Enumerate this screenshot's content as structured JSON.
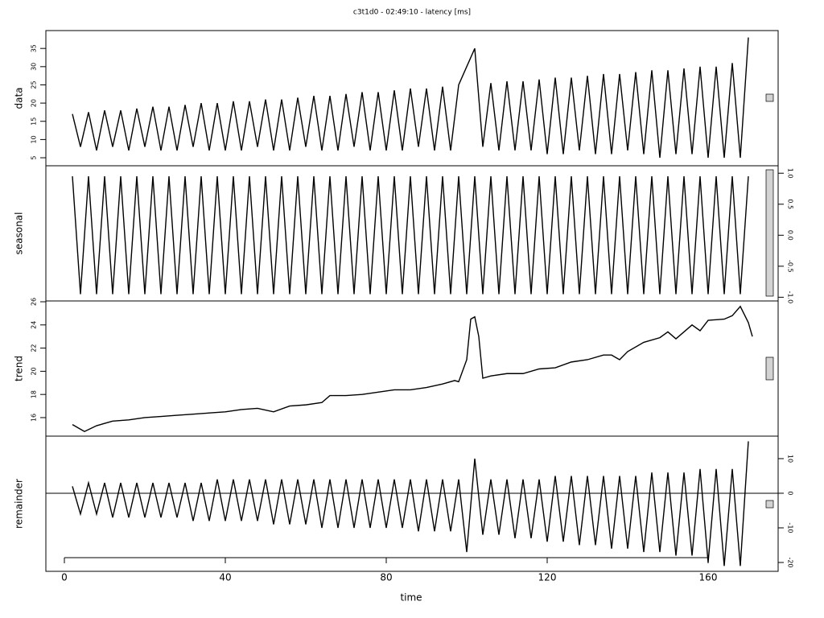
{
  "chart_data": [
    {
      "type": "line",
      "title": "c3t1d0 - 02:49:10 - latency [ms]",
      "ylabel": "data",
      "ylim": [
        2.8,
        39.9
      ],
      "yticks": [
        5,
        10,
        15,
        20,
        25,
        30,
        35
      ],
      "x": [
        2,
        4,
        6,
        8,
        10,
        12,
        14,
        16,
        18,
        20,
        22,
        24,
        26,
        28,
        30,
        32,
        34,
        36,
        38,
        40,
        42,
        44,
        46,
        48,
        50,
        52,
        54,
        56,
        58,
        60,
        62,
        64,
        66,
        68,
        70,
        72,
        74,
        76,
        78,
        80,
        82,
        84,
        86,
        88,
        90,
        92,
        94,
        96,
        98,
        100,
        102,
        104,
        106,
        108,
        110,
        112,
        114,
        116,
        118,
        120,
        122,
        124,
        126,
        128,
        130,
        132,
        134,
        136,
        138,
        140,
        142,
        144,
        146,
        148,
        150,
        152,
        154,
        156,
        158,
        160,
        162,
        164,
        166,
        168,
        170
      ],
      "values": [
        17,
        8,
        17.5,
        7,
        18,
        8,
        18,
        7,
        18.5,
        8,
        19,
        7,
        19,
        7,
        19.5,
        8,
        20,
        7,
        20,
        7,
        20.5,
        7,
        20.5,
        8,
        21,
        7,
        21,
        7,
        21.5,
        8,
        22,
        7,
        22,
        7,
        22.5,
        8,
        23,
        7,
        23,
        7,
        23.5,
        7,
        24,
        8,
        24,
        7,
        24.5,
        7,
        25,
        30,
        35,
        8,
        25.5,
        7,
        26,
        7,
        26,
        7,
        26.5,
        6,
        27,
        6,
        27,
        7,
        27.5,
        6,
        28,
        6,
        28,
        7,
        28.5,
        6,
        29,
        5,
        29,
        6,
        29.5,
        6,
        30,
        5,
        30,
        5,
        31,
        5,
        38
      ],
      "color": "#000000"
    },
    {
      "type": "line",
      "ylabel": "seasonal",
      "ylim": [
        -1.06,
        1.12
      ],
      "yticks": [
        {
          "value": -1,
          "label": "-1.0"
        },
        -0.5,
        {
          "value": 0,
          "label": "0.0"
        },
        0.5,
        {
          "value": 1,
          "label": "1.0"
        }
      ],
      "x": [
        2,
        4,
        6,
        8,
        10,
        12,
        14,
        16,
        18,
        20,
        22,
        24,
        26,
        28,
        30,
        32,
        34,
        36,
        38,
        40,
        42,
        44,
        46,
        48,
        50,
        52,
        54,
        56,
        58,
        60,
        62,
        64,
        66,
        68,
        70,
        72,
        74,
        76,
        78,
        80,
        82,
        84,
        86,
        88,
        90,
        92,
        94,
        96,
        98,
        100,
        102,
        104,
        106,
        108,
        110,
        112,
        114,
        116,
        118,
        120,
        122,
        124,
        126,
        128,
        130,
        132,
        134,
        136,
        138,
        140,
        142,
        144,
        146,
        148,
        150,
        152,
        154,
        156,
        158,
        160,
        162,
        164,
        166,
        168,
        170
      ],
      "values": [
        0.95,
        -0.95,
        0.95,
        -0.95,
        0.95,
        -0.95,
        0.95,
        -0.95,
        0.95,
        -0.95,
        0.95,
        -0.95,
        0.95,
        -0.95,
        0.95,
        -0.95,
        0.95,
        -0.95,
        0.95,
        -0.95,
        0.95,
        -0.95,
        0.95,
        -0.95,
        0.95,
        -0.95,
        0.95,
        -0.95,
        0.95,
        -0.95,
        0.95,
        -0.95,
        0.95,
        -0.95,
        0.95,
        -0.95,
        0.95,
        -0.95,
        0.95,
        -0.95,
        0.95,
        -0.95,
        0.95,
        -0.95,
        0.95,
        -0.95,
        0.95,
        -0.95,
        0.95,
        -0.95,
        0.95,
        -0.95,
        0.95,
        -0.95,
        0.95,
        -0.95,
        0.95,
        -0.95,
        0.95,
        -0.95,
        0.95,
        -0.95,
        0.95,
        -0.95,
        0.95,
        -0.95,
        0.95,
        -0.95,
        0.95,
        -0.95,
        0.95,
        -0.95,
        0.95,
        -0.95,
        0.95,
        -0.95,
        0.95,
        -0.95,
        0.95,
        -0.95,
        0.95,
        -0.95,
        0.95,
        -0.95,
        0.95
      ],
      "color": "#000000"
    },
    {
      "type": "line",
      "ylabel": "trend",
      "ylim": [
        14.4,
        26.07
      ],
      "yticks": [
        16,
        18,
        20,
        22,
        24,
        26
      ],
      "x": [
        2,
        4,
        5,
        8,
        12,
        16,
        20,
        24,
        28,
        32,
        36,
        40,
        44,
        48,
        52,
        56,
        60,
        64,
        66,
        70,
        74,
        78,
        82,
        86,
        90,
        94,
        97,
        98,
        100,
        101,
        102,
        103,
        104,
        106,
        110,
        114,
        118,
        122,
        126,
        130,
        134,
        136,
        138,
        140,
        144,
        148,
        150,
        152,
        156,
        158,
        160,
        164,
        166,
        168,
        170,
        171
      ],
      "values": [
        15.4,
        15.0,
        14.8,
        15.3,
        15.7,
        15.8,
        16.0,
        16.1,
        16.2,
        16.3,
        16.4,
        16.5,
        16.7,
        16.8,
        16.5,
        17.0,
        17.1,
        17.3,
        17.9,
        17.9,
        18.0,
        18.2,
        18.4,
        18.4,
        18.6,
        18.9,
        19.2,
        19.1,
        21.0,
        24.5,
        24.7,
        23.0,
        19.4,
        19.6,
        19.8,
        19.8,
        20.2,
        20.3,
        20.8,
        21.0,
        21.4,
        21.4,
        21.0,
        21.7,
        22.5,
        22.9,
        23.4,
        22.8,
        24.0,
        23.5,
        24.4,
        24.5,
        24.8,
        25.6,
        24.2,
        23.0
      ],
      "color": "#000000"
    },
    {
      "type": "line",
      "ylabel": "remainder",
      "xlabel": "time",
      "ylim": [
        -22.56,
        16.5
      ],
      "yticks": [
        -20,
        -10,
        0,
        10
      ],
      "hline": 0,
      "xlim": [
        -4.6,
        177.4
      ],
      "xticks": [
        0,
        40,
        80,
        120,
        160
      ],
      "x": [
        2,
        4,
        6,
        8,
        10,
        12,
        14,
        16,
        18,
        20,
        22,
        24,
        26,
        28,
        30,
        32,
        34,
        36,
        38,
        40,
        42,
        44,
        46,
        48,
        50,
        52,
        54,
        56,
        58,
        60,
        62,
        64,
        66,
        68,
        70,
        72,
        74,
        76,
        78,
        80,
        82,
        84,
        86,
        88,
        90,
        92,
        94,
        96,
        98,
        100,
        102,
        104,
        106,
        108,
        110,
        112,
        114,
        116,
        118,
        120,
        122,
        124,
        126,
        128,
        130,
        132,
        134,
        136,
        138,
        140,
        142,
        144,
        146,
        148,
        150,
        152,
        154,
        156,
        158,
        160,
        162,
        164,
        166,
        168,
        170
      ],
      "values": [
        2,
        -6,
        3,
        -6,
        3,
        -7,
        3,
        -7,
        3,
        -7,
        3,
        -7,
        3,
        -7,
        3,
        -8,
        3,
        -8,
        4,
        -8,
        4,
        -8,
        4,
        -8,
        4,
        -9,
        4,
        -9,
        4,
        -9,
        4,
        -10,
        4,
        -10,
        4,
        -10,
        4,
        -10,
        4,
        -10,
        4,
        -10,
        4,
        -11,
        4,
        -11,
        4,
        -11,
        4,
        -17,
        10,
        -12,
        4,
        -12,
        4,
        -13,
        4,
        -13,
        4,
        -14,
        5,
        -14,
        5,
        -15,
        5,
        -15,
        5,
        -16,
        5,
        -16,
        5,
        -17,
        6,
        -17,
        6,
        -18,
        6,
        -18,
        7,
        -20,
        7,
        -21,
        7,
        -21,
        15
      ],
      "color": "#000000"
    }
  ]
}
